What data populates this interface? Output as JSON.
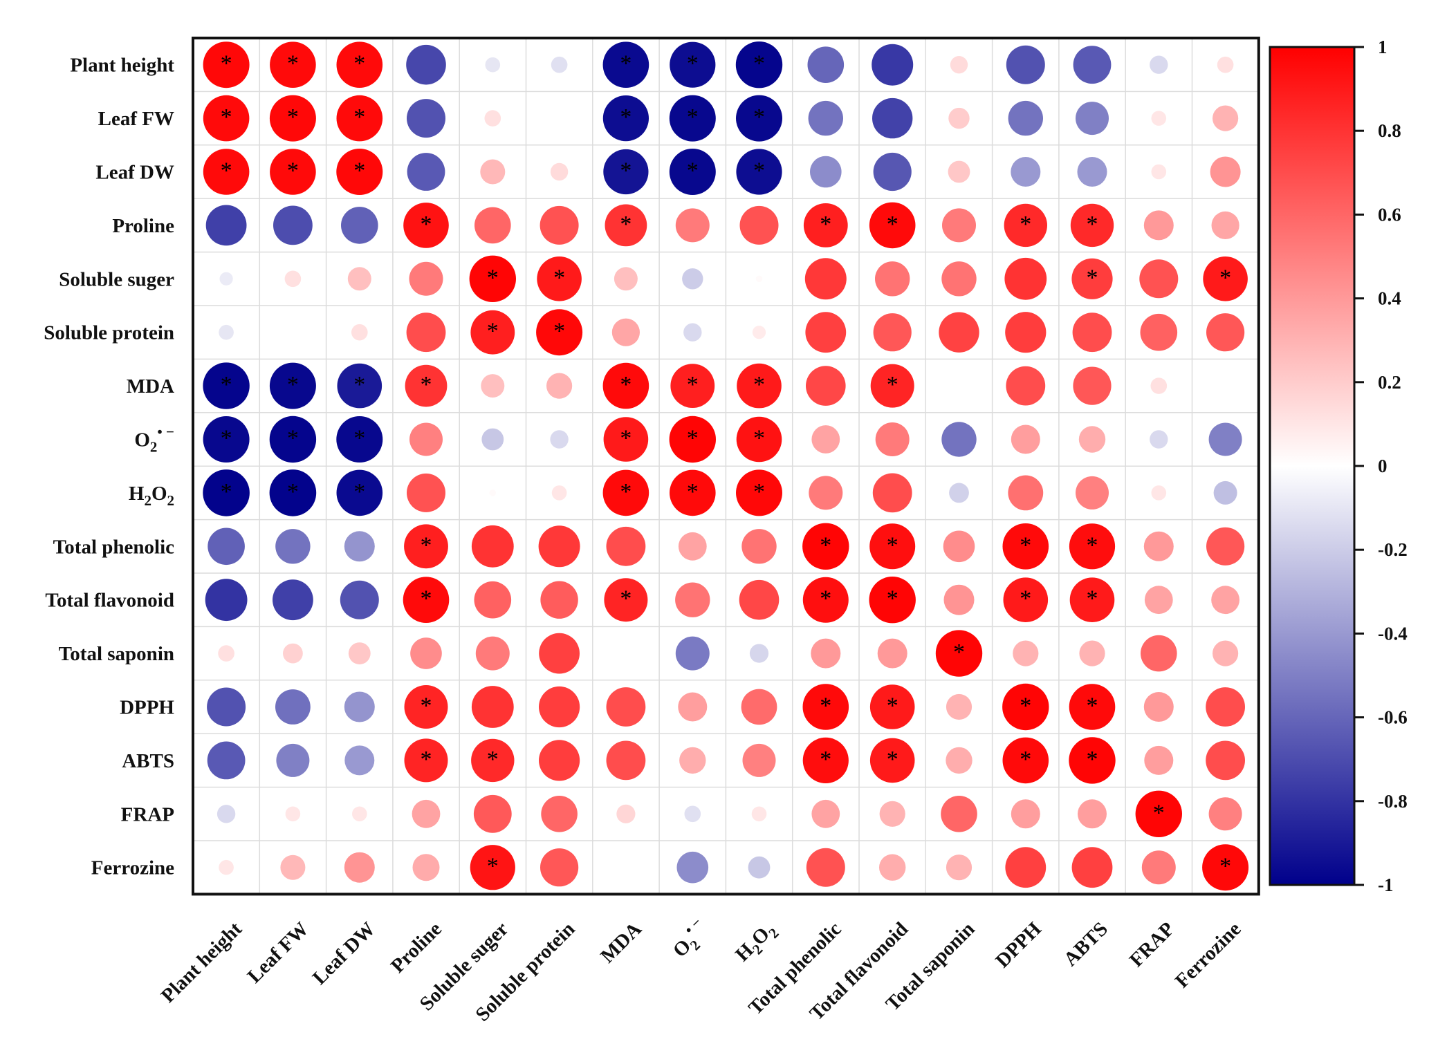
{
  "chart_data": {
    "type": "heatmap",
    "style": "circle-correlation-matrix",
    "title": "",
    "variables": [
      {
        "text": "Plant height"
      },
      {
        "text": "Leaf FW"
      },
      {
        "text": "Leaf DW"
      },
      {
        "text": "Proline"
      },
      {
        "text": "Soluble suger"
      },
      {
        "text": "Soluble protein"
      },
      {
        "text": "MDA"
      },
      {
        "text": "O",
        "sub": "2",
        "sup": "• −"
      },
      {
        "text": "H",
        "sub": "2",
        "mid": "O",
        "sub2": "2"
      },
      {
        "text": "Total phenolic"
      },
      {
        "text": "Total flavonoid"
      },
      {
        "text": "Total saponin"
      },
      {
        "text": "DPPH"
      },
      {
        "text": "ABTS"
      },
      {
        "text": "FRAP"
      },
      {
        "text": "Ferrozine"
      }
    ],
    "values": [
      [
        0.97,
        0.96,
        0.96,
        -0.72,
        -0.1,
        -0.12,
        -0.96,
        -0.95,
        -0.98,
        -0.6,
        -0.78,
        0.14,
        -0.68,
        -0.65,
        -0.15,
        0.12
      ],
      [
        0.96,
        0.97,
        0.96,
        -0.68,
        0.12,
        0.0,
        -0.95,
        -0.97,
        -0.97,
        -0.55,
        -0.74,
        0.2,
        -0.55,
        -0.5,
        0.1,
        0.3
      ],
      [
        0.96,
        0.96,
        0.97,
        -0.65,
        0.28,
        0.14,
        -0.92,
        -0.97,
        -0.95,
        -0.45,
        -0.66,
        0.22,
        -0.4,
        -0.4,
        0.1,
        0.42
      ],
      [
        -0.75,
        -0.7,
        -0.62,
        0.93,
        0.6,
        0.68,
        0.8,
        0.52,
        0.68,
        0.88,
        0.96,
        0.52,
        0.84,
        0.84,
        0.4,
        0.35
      ],
      [
        -0.08,
        0.12,
        0.25,
        0.52,
        0.98,
        0.9,
        0.25,
        -0.2,
        0.02,
        0.78,
        0.55,
        0.55,
        0.8,
        0.76,
        0.68,
        0.9
      ],
      [
        -0.1,
        0.0,
        0.12,
        0.7,
        0.88,
        0.97,
        0.35,
        -0.15,
        0.08,
        0.75,
        0.66,
        0.74,
        0.76,
        0.7,
        0.62,
        0.66
      ],
      [
        -0.98,
        -0.97,
        -0.9,
        0.8,
        0.25,
        0.3,
        0.96,
        0.88,
        0.9,
        0.72,
        0.86,
        0.0,
        0.7,
        0.66,
        0.12,
        0.0
      ],
      [
        -0.97,
        -0.98,
        -0.97,
        0.5,
        -0.22,
        -0.15,
        0.9,
        0.98,
        0.93,
        0.36,
        0.52,
        -0.55,
        0.38,
        0.32,
        -0.15,
        -0.5
      ],
      [
        -0.99,
        -0.99,
        -0.96,
        0.68,
        0.02,
        0.1,
        0.96,
        0.96,
        0.97,
        0.52,
        0.7,
        -0.18,
        0.56,
        0.5,
        0.1,
        -0.25
      ],
      [
        -0.62,
        -0.55,
        -0.42,
        0.88,
        0.8,
        0.78,
        0.7,
        0.36,
        0.55,
        0.98,
        0.94,
        0.45,
        0.96,
        0.95,
        0.4,
        0.66
      ],
      [
        -0.8,
        -0.75,
        -0.68,
        0.96,
        0.62,
        0.64,
        0.86,
        0.55,
        0.72,
        0.94,
        0.98,
        0.42,
        0.9,
        0.9,
        0.36,
        0.36
      ],
      [
        0.12,
        0.18,
        0.22,
        0.45,
        0.52,
        0.75,
        0.0,
        -0.52,
        -0.16,
        0.4,
        0.4,
        0.98,
        0.3,
        0.3,
        0.6,
        0.3
      ],
      [
        -0.68,
        -0.56,
        -0.42,
        0.86,
        0.8,
        0.76,
        0.7,
        0.38,
        0.58,
        0.96,
        0.9,
        0.3,
        0.98,
        0.96,
        0.4,
        0.7
      ],
      [
        -0.65,
        -0.5,
        -0.4,
        0.86,
        0.84,
        0.76,
        0.7,
        0.32,
        0.5,
        0.95,
        0.9,
        0.32,
        0.96,
        0.98,
        0.38,
        0.7
      ],
      [
        -0.15,
        0.1,
        0.1,
        0.36,
        0.65,
        0.6,
        0.16,
        -0.12,
        0.1,
        0.36,
        0.3,
        0.6,
        0.38,
        0.38,
        0.98,
        0.5
      ],
      [
        0.1,
        0.28,
        0.42,
        0.33,
        0.92,
        0.66,
        0.0,
        -0.45,
        -0.22,
        0.68,
        0.32,
        0.3,
        0.75,
        0.75,
        0.52,
        0.97
      ]
    ],
    "significance_marker": "*",
    "significant": [
      [
        true,
        true,
        true,
        false,
        false,
        false,
        true,
        true,
        true,
        false,
        false,
        false,
        false,
        false,
        false,
        false
      ],
      [
        true,
        true,
        true,
        false,
        false,
        false,
        true,
        true,
        true,
        false,
        false,
        false,
        false,
        false,
        false,
        false
      ],
      [
        true,
        true,
        true,
        false,
        false,
        false,
        true,
        true,
        true,
        false,
        false,
        false,
        false,
        false,
        false,
        false
      ],
      [
        false,
        false,
        false,
        true,
        false,
        false,
        true,
        false,
        false,
        true,
        true,
        false,
        true,
        true,
        false,
        false
      ],
      [
        false,
        false,
        false,
        false,
        true,
        true,
        false,
        false,
        false,
        false,
        false,
        false,
        false,
        true,
        false,
        true
      ],
      [
        false,
        false,
        false,
        false,
        true,
        true,
        false,
        false,
        false,
        false,
        false,
        false,
        false,
        false,
        false,
        false
      ],
      [
        true,
        true,
        true,
        true,
        false,
        false,
        true,
        true,
        true,
        false,
        true,
        false,
        false,
        false,
        false,
        false
      ],
      [
        true,
        true,
        true,
        false,
        false,
        false,
        true,
        true,
        true,
        false,
        false,
        false,
        false,
        false,
        false,
        false
      ],
      [
        true,
        true,
        true,
        false,
        false,
        false,
        true,
        true,
        true,
        false,
        false,
        false,
        false,
        false,
        false,
        false
      ],
      [
        false,
        false,
        false,
        true,
        false,
        false,
        false,
        false,
        false,
        true,
        true,
        false,
        true,
        true,
        false,
        false
      ],
      [
        false,
        false,
        false,
        true,
        false,
        false,
        true,
        false,
        false,
        true,
        true,
        false,
        true,
        true,
        false,
        false
      ],
      [
        false,
        false,
        false,
        false,
        false,
        false,
        false,
        false,
        false,
        false,
        false,
        true,
        false,
        false,
        false,
        false
      ],
      [
        false,
        false,
        false,
        true,
        false,
        false,
        false,
        false,
        false,
        true,
        true,
        false,
        true,
        true,
        false,
        false
      ],
      [
        false,
        false,
        false,
        true,
        true,
        false,
        false,
        false,
        false,
        true,
        true,
        false,
        true,
        true,
        false,
        false
      ],
      [
        false,
        false,
        false,
        false,
        false,
        false,
        false,
        false,
        false,
        false,
        false,
        false,
        false,
        false,
        true,
        false
      ],
      [
        false,
        false,
        false,
        false,
        true,
        false,
        false,
        false,
        false,
        false,
        false,
        false,
        false,
        false,
        false,
        true
      ]
    ],
    "colorbar": {
      "min": -1,
      "max": 1,
      "ticks": [
        1,
        0.8,
        0.6,
        0.4,
        0.2,
        0,
        -0.2,
        -0.4,
        -0.6,
        -0.8,
        -1
      ],
      "tick_labels": [
        "1",
        "0.8",
        "0.6",
        "0.4",
        "0.2",
        "0",
        "-0.2",
        "-0.4",
        "-0.6",
        "-0.8",
        "-1"
      ],
      "colors": {
        "negative": "#00008b",
        "zero": "#ffffff",
        "positive": "#ff0000"
      }
    },
    "grid": true,
    "legend": "right"
  }
}
